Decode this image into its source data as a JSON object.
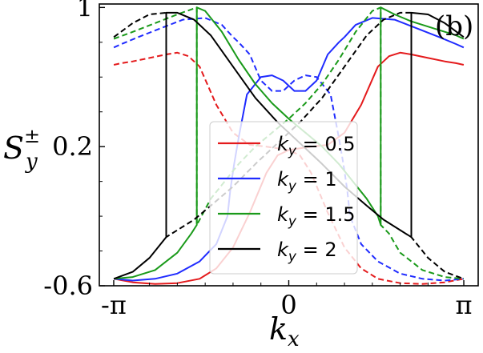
{
  "chart_data": {
    "type": "line",
    "panel_label": "(b)",
    "xlabel": "k",
    "xlabel_sub": "x",
    "ylabel": "S",
    "ylabel_sup": "±",
    "ylabel_sub": "y",
    "xlim": [
      -3.4,
      3.4
    ],
    "ylim": [
      -0.6,
      1.02
    ],
    "xticks": [
      {
        "value": -3.14159,
        "label": "-π"
      },
      {
        "value": 0,
        "label": "0"
      },
      {
        "value": 3.14159,
        "label": "π"
      }
    ],
    "yticks": [
      {
        "value": -0.6,
        "label": "-0.6"
      },
      {
        "value": 0.2,
        "label": "0.2"
      },
      {
        "value": 1,
        "label": "1"
      }
    ],
    "legend": {
      "placement": "center",
      "entries": [
        {
          "prefix": "k",
          "sub": "y",
          "value": "= 0.5"
        },
        {
          "prefix": "k",
          "sub": "y",
          "value": "= 1"
        },
        {
          "prefix": "k",
          "sub": "y",
          "value": "= 1.5"
        },
        {
          "prefix": "k",
          "sub": "y",
          "value": "= 2"
        }
      ]
    },
    "series": [
      {
        "ky": 0.5,
        "color": "#e41a1c",
        "solid": {
          "x": [
            -3.14,
            -2.8,
            -2.4,
            -2.0,
            -1.6,
            -1.3,
            -1.0,
            -0.7,
            -0.4,
            -0.2,
            0.0,
            0.2,
            0.4,
            0.7,
            1.0,
            1.3,
            1.6,
            1.8,
            2.0,
            2.2,
            2.5,
            2.8,
            3.0,
            3.14
          ],
          "y": [
            -0.56,
            -0.58,
            -0.59,
            -0.585,
            -0.56,
            -0.5,
            -0.38,
            -0.18,
            0.05,
            0.15,
            0.18,
            0.19,
            0.2,
            0.21,
            0.28,
            0.44,
            0.66,
            0.72,
            0.74,
            0.73,
            0.71,
            0.69,
            0.68,
            0.67
          ]
        },
        "dashed": {
          "x": [
            -3.14,
            -3.0,
            -2.8,
            -2.5,
            -2.2,
            -2.0,
            -1.8,
            -1.6,
            -1.3,
            -1.0,
            -0.7,
            -0.4,
            -0.2,
            0.0,
            0.2,
            0.4,
            0.7,
            1.0,
            1.3,
            1.6,
            2.0,
            2.4,
            2.8,
            3.14
          ],
          "y": [
            0.67,
            0.68,
            0.69,
            0.71,
            0.73,
            0.74,
            0.72,
            0.66,
            0.44,
            0.28,
            0.21,
            0.2,
            0.19,
            0.18,
            0.15,
            0.05,
            -0.18,
            -0.38,
            -0.5,
            -0.56,
            -0.585,
            -0.59,
            -0.58,
            -0.56
          ]
        }
      },
      {
        "ky": 1,
        "color": "#1f2bff",
        "solid": {
          "x": [
            -3.14,
            -2.8,
            -2.4,
            -2.0,
            -1.6,
            -1.3,
            -1.1,
            -1.05,
            -0.98,
            -0.9,
            -0.75,
            -0.5,
            -0.3,
            -0.1,
            0.0,
            0.1,
            0.3,
            0.5,
            0.7,
            0.9,
            1.0,
            1.2,
            1.5,
            1.9,
            2.3,
            2.7,
            3.0,
            3.14
          ],
          "y": [
            -0.56,
            -0.57,
            -0.56,
            -0.53,
            -0.46,
            -0.36,
            -0.2,
            -0.05,
            0.1,
            0.25,
            0.5,
            0.6,
            0.61,
            0.58,
            0.55,
            0.52,
            0.52,
            0.58,
            0.73,
            0.8,
            0.83,
            0.9,
            0.94,
            0.93,
            0.88,
            0.83,
            0.79,
            0.77
          ]
        },
        "dashed": {
          "x": [
            -3.14,
            -3.0,
            -2.7,
            -2.3,
            -1.9,
            -1.5,
            -1.2,
            -1.0,
            -0.9,
            -0.7,
            -0.5,
            -0.3,
            -0.1,
            0.0,
            0.1,
            0.3,
            0.5,
            0.75,
            0.9,
            0.98,
            1.05,
            1.1,
            1.3,
            1.6,
            2.0,
            2.4,
            2.8,
            3.14
          ],
          "y": [
            0.77,
            0.79,
            0.83,
            0.88,
            0.93,
            0.94,
            0.9,
            0.83,
            0.8,
            0.73,
            0.58,
            0.52,
            0.52,
            0.55,
            0.58,
            0.61,
            0.6,
            0.5,
            0.25,
            0.1,
            -0.05,
            -0.2,
            -0.36,
            -0.46,
            -0.53,
            -0.56,
            -0.57,
            -0.56
          ]
        }
      },
      {
        "ky": 1.5,
        "color": "#1a9a1a",
        "solid": {
          "x": [
            -3.14,
            -2.8,
            -2.4,
            -2.0,
            -1.75,
            -1.65,
            -1.65,
            -1.5,
            -1.2,
            -0.9,
            -0.6,
            -0.3,
            0.0,
            0.3,
            0.6,
            0.9,
            1.2,
            1.4,
            1.6,
            1.65,
            1.65,
            1.9,
            2.2,
            2.6,
            3.0,
            3.14
          ],
          "y": [
            -0.56,
            -0.55,
            -0.51,
            -0.41,
            -0.3,
            -0.25,
            1.0,
            0.98,
            0.86,
            0.7,
            0.56,
            0.45,
            0.36,
            0.28,
            0.2,
            0.1,
            -0.02,
            -0.1,
            -0.2,
            -0.25,
            1.0,
            0.96,
            0.92,
            0.88,
            0.84,
            0.82
          ]
        },
        "dashed": {
          "x": [
            -3.14,
            -2.8,
            -2.4,
            -2.0,
            -1.65,
            -1.65,
            -1.4,
            -1.2,
            -0.9,
            -0.6,
            -0.3,
            0.0,
            0.3,
            0.6,
            0.9,
            1.2,
            1.5,
            1.65,
            1.65,
            1.8,
            2.0,
            2.4,
            2.8,
            3.14
          ],
          "y": [
            0.82,
            0.86,
            0.91,
            0.96,
            1.0,
            -0.25,
            -0.1,
            -0.02,
            0.1,
            0.2,
            0.28,
            0.36,
            0.45,
            0.56,
            0.7,
            0.86,
            0.98,
            1.0,
            -0.25,
            -0.3,
            -0.41,
            -0.51,
            -0.55,
            -0.56
          ]
        }
      },
      {
        "ky": 2,
        "color": "#000000",
        "solid": {
          "x": [
            -3.14,
            -2.8,
            -2.5,
            -2.2,
            -2.2,
            -2.0,
            -1.7,
            -1.4,
            -1.0,
            -0.6,
            -0.2,
            0.0,
            0.2,
            0.6,
            1.0,
            1.4,
            1.7,
            2.0,
            2.2,
            2.2,
            2.5,
            2.8,
            3.14
          ],
          "y": [
            -0.56,
            -0.52,
            -0.44,
            -0.32,
            0.97,
            0.97,
            0.93,
            0.84,
            0.66,
            0.48,
            0.34,
            0.28,
            0.22,
            0.1,
            -0.03,
            -0.14,
            -0.22,
            -0.28,
            -0.32,
            0.97,
            0.96,
            0.91,
            0.83
          ]
        },
        "dashed": {
          "x": [
            -3.14,
            -2.8,
            -2.5,
            -2.2,
            -2.2,
            -2.0,
            -1.7,
            -1.4,
            -1.0,
            -0.6,
            -0.2,
            0.0,
            0.2,
            0.6,
            1.0,
            1.4,
            1.7,
            2.0,
            2.2,
            2.2,
            2.5,
            2.8,
            3.14
          ],
          "y": [
            0.83,
            0.91,
            0.96,
            0.97,
            -0.32,
            -0.28,
            -0.22,
            -0.14,
            -0.03,
            0.1,
            0.22,
            0.28,
            0.34,
            0.48,
            0.66,
            0.84,
            0.93,
            0.97,
            0.97,
            -0.32,
            -0.44,
            -0.52,
            -0.56
          ]
        }
      }
    ]
  }
}
